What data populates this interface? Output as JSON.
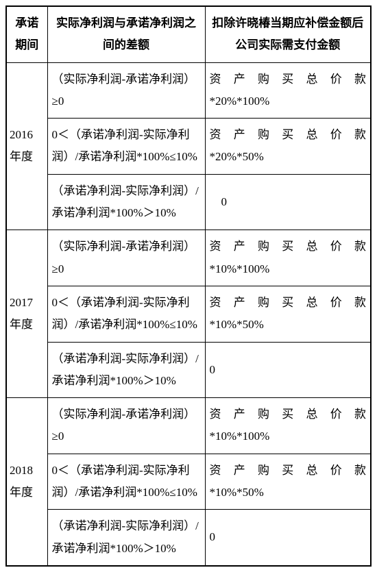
{
  "headers": {
    "period": "承诺期间",
    "diff": "实际净利润与承诺净利润之间的差额",
    "pay": "扣除许晓椿当期应补偿金额后公司实际需支付金额"
  },
  "periods": {
    "y2016": "2016年度",
    "y2017": "2017年度",
    "y2018": "2018年度"
  },
  "diff_rows": {
    "r1": "（实际净利润-承诺净利润）≥0",
    "r2": "0＜（承诺净利润-实际净利润）/承诺净利润*100%≤10%",
    "r3": "（承诺净利润-实际净利润）/承诺净利润*100%＞10%"
  },
  "pay_rows": {
    "p2016_1a": "资产购买总价款",
    "p2016_1b": "*20%*100%",
    "p2016_2a": "资产购买总价款",
    "p2016_2b": "*20%*50%",
    "p2016_3": "　0",
    "p2017_1a": "资产购买总价款",
    "p2017_1b": "*10%*100%",
    "p2017_2a": "资产购买总价款",
    "p2017_2b": "*10%*50%",
    "p2017_3": "0",
    "p2018_1a": "资产购买总价款",
    "p2018_1b": "*10%*100%",
    "p2018_2a": "资产购买总价款",
    "p2018_2b": "*10%*50%",
    "p2018_3": "0"
  }
}
